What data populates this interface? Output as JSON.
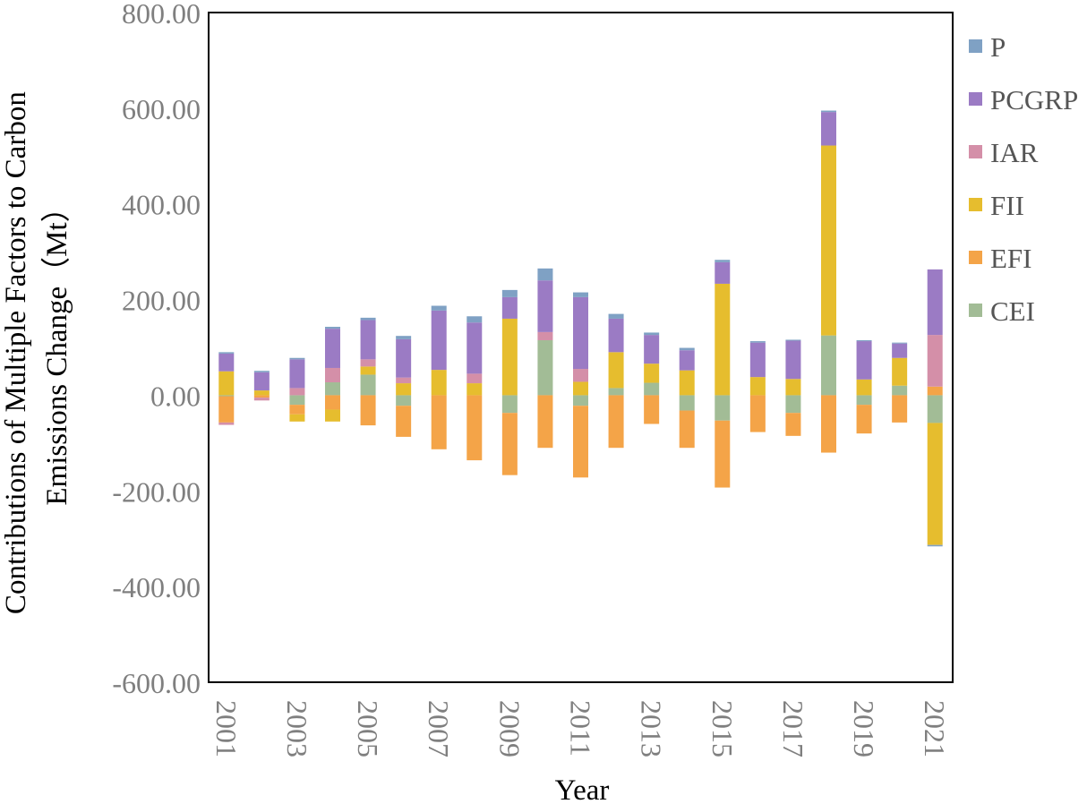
{
  "chart_data": {
    "type": "bar",
    "stacked": true,
    "title": "",
    "xlabel": "Year",
    "ylabel": "Contributions of Multiple Factors to Carbon Emissions Change（Mt）",
    "ylabel_lines": [
      "Contributions of Multiple Factors to Carbon",
      "Emissions Change（Mt）"
    ],
    "ylim": [
      -600,
      800
    ],
    "yticks": [
      800,
      600,
      400,
      200,
      0,
      -200,
      -400,
      -600
    ],
    "ytick_labels": [
      "800.00",
      "600.00",
      "400.00",
      "200.00",
      "0.00",
      "-200.00",
      "-400.00",
      "-600.00"
    ],
    "categories": [
      "2001",
      "2002",
      "2003",
      "2004",
      "2005",
      "2006",
      "2007",
      "2008",
      "2009",
      "2010",
      "2011",
      "2012",
      "2013",
      "2014",
      "2015",
      "2016",
      "2017",
      "2018",
      "2019",
      "2020",
      "2021"
    ],
    "xtick_labels": [
      "2001",
      "",
      "2003",
      "",
      "2005",
      "",
      "2007",
      "",
      "2009",
      "",
      "2011",
      "",
      "2013",
      "",
      "2015",
      "",
      "2017",
      "",
      "2019",
      "",
      "2021"
    ],
    "stack_order": [
      "CEI",
      "EFI",
      "FII",
      "IAR",
      "PCGRP",
      "P"
    ],
    "legend_position": "right",
    "legend": [
      "P",
      "PCGRP",
      "IAR",
      "FII",
      "EFI",
      "CEI"
    ],
    "series": [
      {
        "name": "P",
        "color": "#7FA1C4",
        "values": [
          3,
          3,
          3,
          4,
          5,
          7,
          10,
          13,
          15,
          25,
          10,
          10,
          5,
          5,
          5,
          3,
          2,
          3,
          2,
          2,
          -3
        ]
      },
      {
        "name": "PCGRP",
        "color": "#9B7BC4",
        "values": [
          37,
          38,
          60,
          82,
          82,
          80,
          124,
          107,
          45,
          108,
          150,
          70,
          60,
          42,
          45,
          72,
          80,
          70,
          80,
          30,
          137
        ]
      },
      {
        "name": "IAR",
        "color": "#D48FA8",
        "values": [
          -5,
          -6,
          15,
          30,
          15,
          12,
          0,
          20,
          0,
          17,
          27,
          0,
          0,
          0,
          0,
          0,
          0,
          0,
          0,
          0,
          108
        ]
      },
      {
        "name": "FII",
        "color": "#E6BD2E",
        "values": [
          50,
          10,
          -15,
          -25,
          17,
          25,
          53,
          25,
          160,
          0,
          28,
          75,
          40,
          52,
          233,
          38,
          34,
          397,
          33,
          58,
          -255
        ]
      },
      {
        "name": "EFI",
        "color": "#F4A448",
        "values": [
          -55,
          -5,
          -20,
          -30,
          -63,
          -65,
          -113,
          -136,
          -130,
          -110,
          -150,
          -110,
          -60,
          -78,
          -140,
          -77,
          -48,
          -120,
          -60,
          -57,
          18
        ]
      },
      {
        "name": "CEI",
        "color": "#A2BC96",
        "values": [
          -2,
          0,
          -20,
          27,
          43,
          -22,
          0,
          0,
          -37,
          115,
          -22,
          15,
          26,
          -32,
          -53,
          0,
          -37,
          125,
          -20,
          20,
          -58
        ]
      }
    ]
  }
}
